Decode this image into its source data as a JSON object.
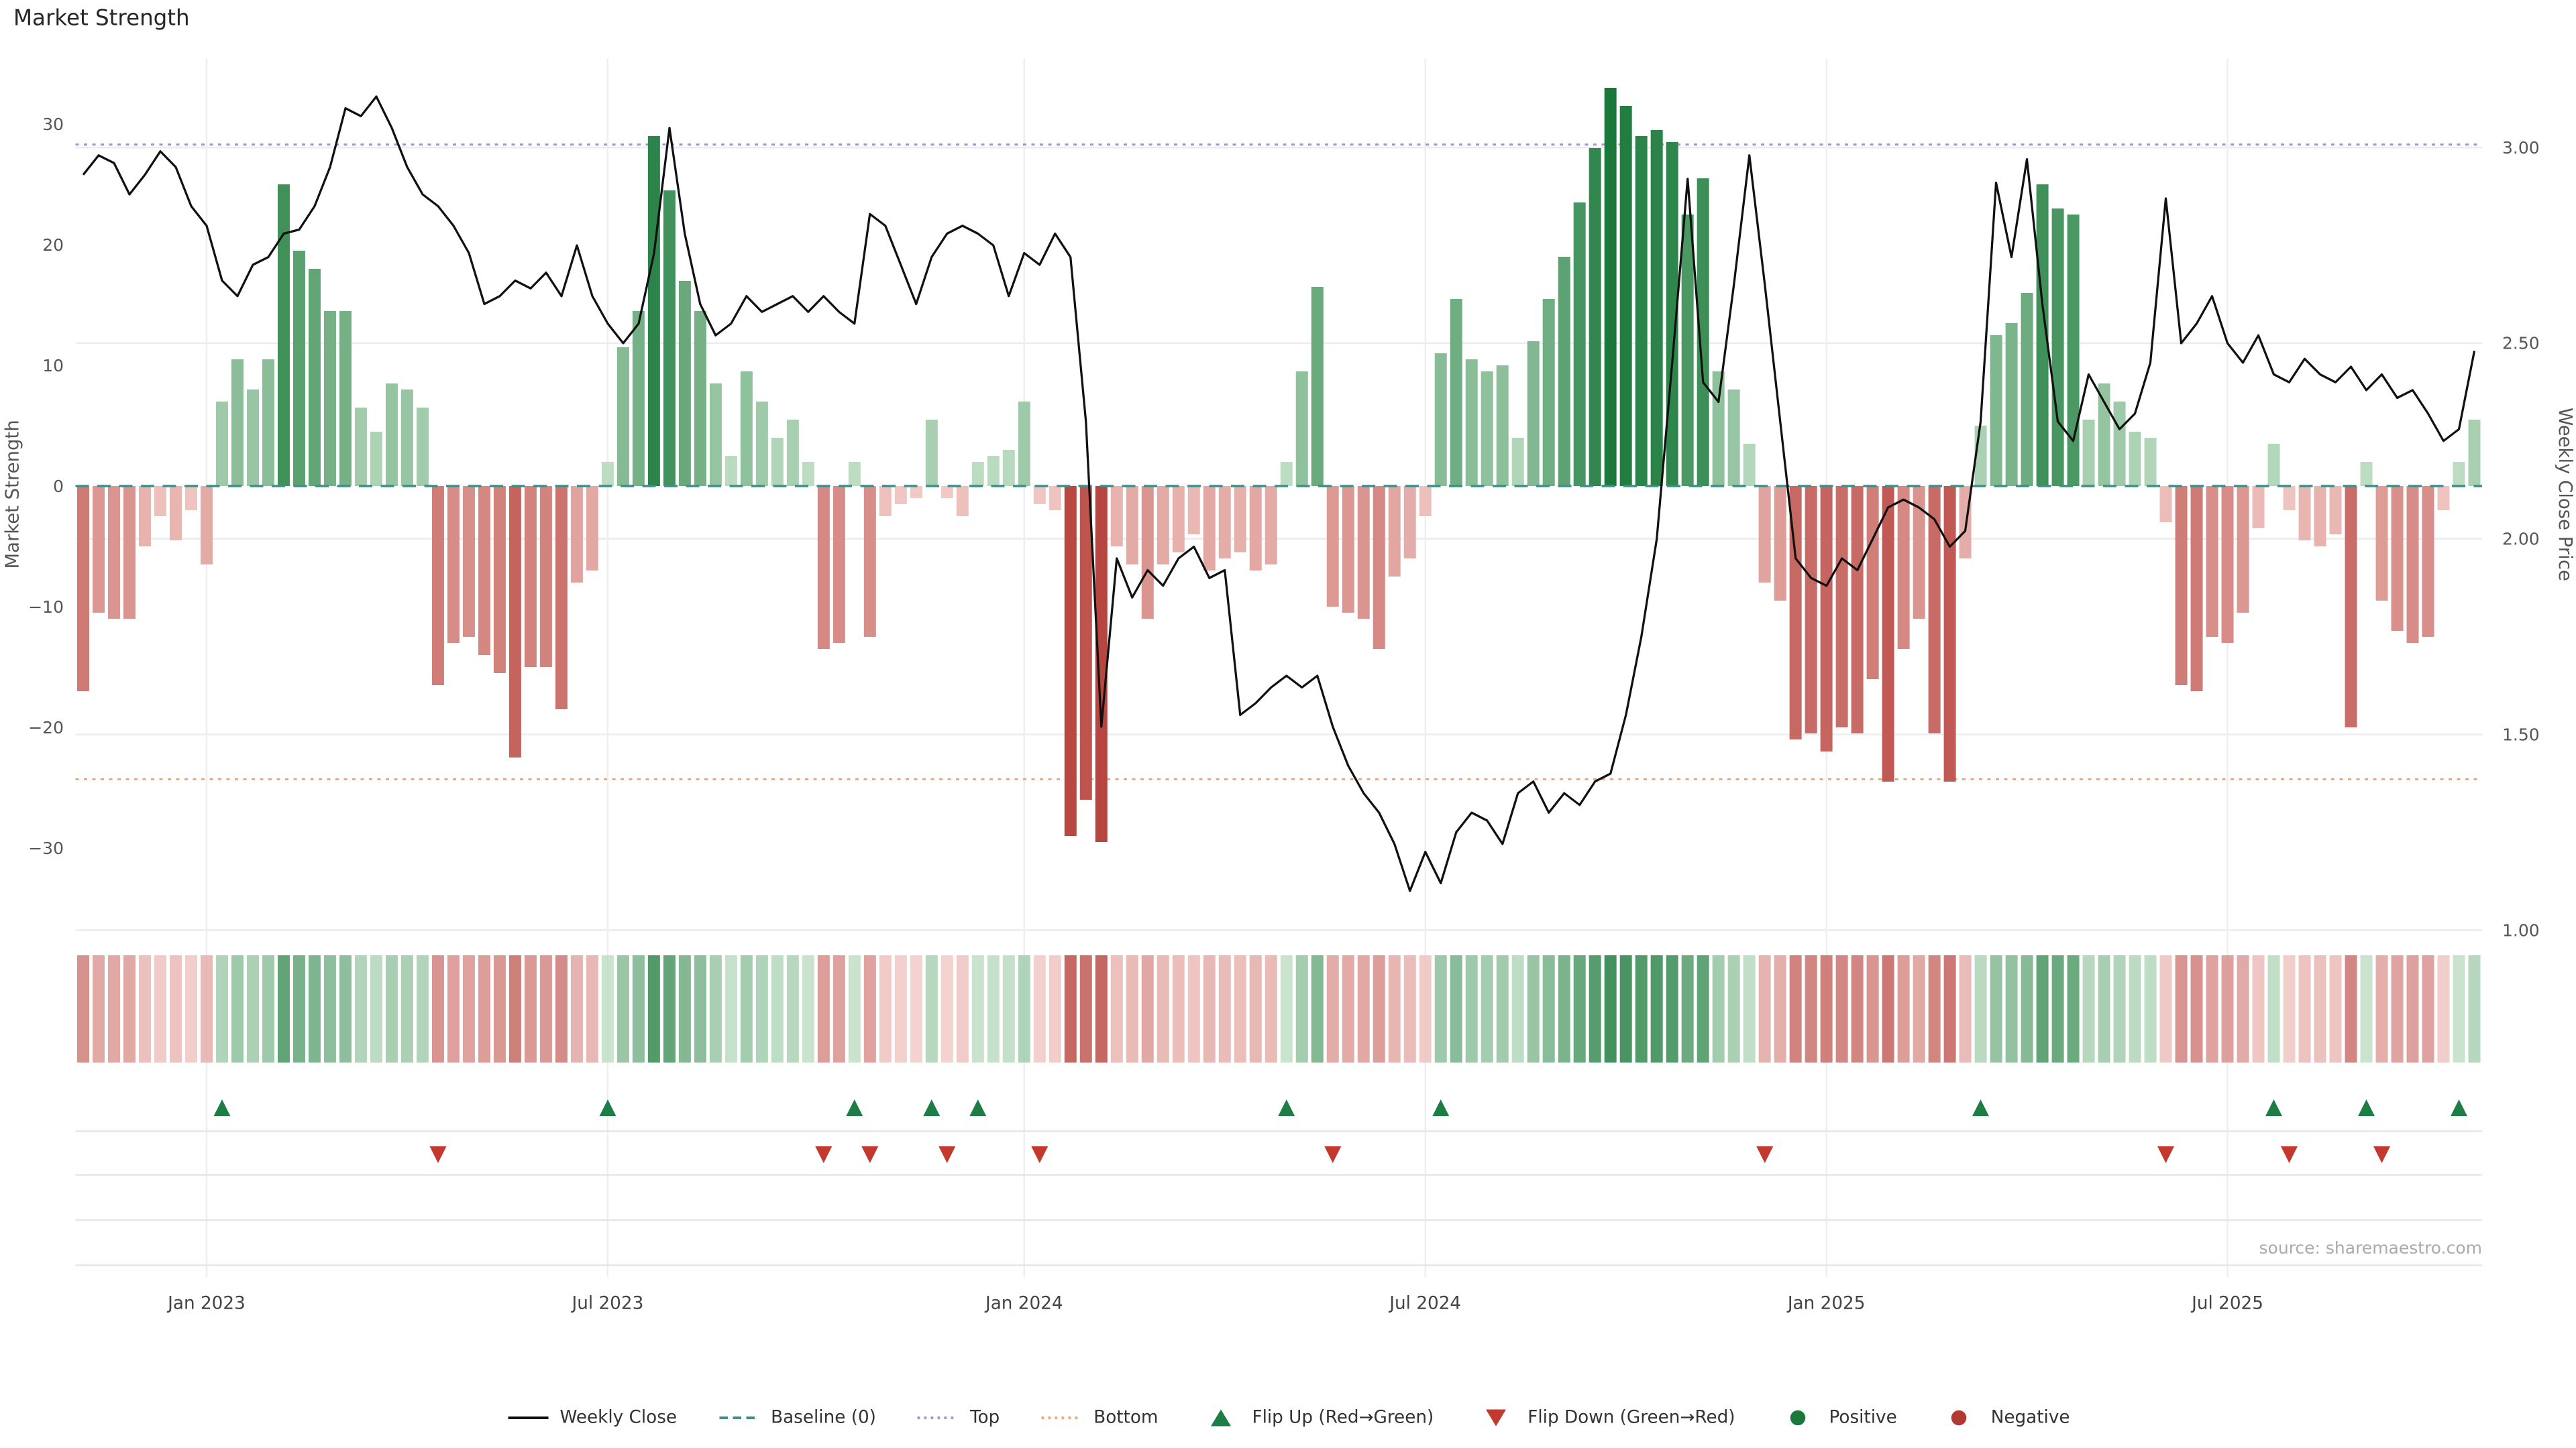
{
  "title": "Market Strength",
  "source": "source: sharemaestro.com",
  "axes": {
    "left_label": "Market Strength",
    "right_label": "Weekly Close Price"
  },
  "colors": {
    "baseline": "#3d8f8a",
    "top": "#a491cd",
    "bottom": "#f2a672",
    "flip_up": "#1e7d46",
    "flip_down": "#c4392e",
    "line": "#111111",
    "positive_dark": "#1a793a",
    "negative_dark": "#b23832",
    "positive_light": "#cee7d1",
    "negative_light": "#f5d1cd"
  },
  "legend": [
    {
      "key": "weekly-close",
      "label": "Weekly Close",
      "marker": "line",
      "color": "#111111"
    },
    {
      "key": "baseline",
      "label": "Baseline (0)",
      "marker": "dashed",
      "color": "#3d8f8a"
    },
    {
      "key": "top",
      "label": "Top",
      "marker": "dotted",
      "color": "#a491cd"
    },
    {
      "key": "bottom",
      "label": "Bottom",
      "marker": "dotted",
      "color": "#f2a672"
    },
    {
      "key": "flip-up",
      "label": "Flip Up (Red→Green)",
      "marker": "triangle-up",
      "color": "#1e7d46"
    },
    {
      "key": "flip-down",
      "label": "Flip Down (Green→Red)",
      "marker": "triangle-down",
      "color": "#c4392e"
    },
    {
      "key": "positive",
      "label": "Positive",
      "marker": "circle",
      "color": "#1a793a"
    },
    {
      "key": "negative",
      "label": "Negative",
      "marker": "circle",
      "color": "#b23832"
    }
  ],
  "chart_data": {
    "type": "combo",
    "x_unit": "week",
    "weeks": 156,
    "bar_series": {
      "name": "Market Strength",
      "axis": "left",
      "values": [
        -17,
        -10.5,
        -11,
        -11,
        -5,
        -2.5,
        -4.5,
        -2,
        -6.5,
        7,
        10.5,
        8,
        10.5,
        25,
        19.5,
        18,
        14.5,
        14.5,
        6.5,
        4.5,
        8.5,
        8,
        6.5,
        -16.5,
        -13,
        -12.5,
        -14,
        -15.5,
        -22.5,
        -15,
        -15,
        -18.5,
        -8,
        -7,
        2,
        11.5,
        14.5,
        29,
        24.5,
        17,
        14.5,
        8.5,
        2.5,
        9.5,
        7,
        4,
        5.5,
        2,
        -13.5,
        -13,
        2,
        -12.5,
        -2.5,
        -1.5,
        -1,
        5.5,
        -1,
        -2.5,
        2,
        2.5,
        3,
        7,
        -1.5,
        -2,
        -29,
        -26,
        -29.5,
        -5,
        -6.5,
        -11,
        -6.5,
        -5.5,
        -4,
        -7,
        -6,
        -5.5,
        -7,
        -6.5,
        2,
        9.5,
        16.5,
        -10,
        -10.5,
        -11,
        -13.5,
        -7.5,
        -6,
        -2.5,
        11,
        15.5,
        10.5,
        9.5,
        10,
        4,
        12,
        15.5,
        19,
        23.5,
        28,
        33,
        31.5,
        29,
        29.5,
        28.5,
        22.5,
        25.5,
        9.5,
        8,
        3.5,
        -8,
        -9.5,
        -21,
        -20.5,
        -22,
        -20,
        -20.5,
        -16,
        -24.5,
        -13.5,
        -11,
        -20.5,
        -24.5,
        -6,
        5,
        12.5,
        13.5,
        16,
        25,
        23,
        22.5,
        5.5,
        8.5,
        7,
        4.5,
        4,
        -3,
        -16.5,
        -17,
        -12.5,
        -13,
        -10.5,
        -3.5,
        3.5,
        -2,
        -4.5,
        -5,
        -4,
        -20,
        2,
        -9.5,
        -12,
        -13,
        -12.5,
        -2,
        2,
        5.5
      ]
    },
    "line_series": {
      "name": "Weekly Close",
      "axis": "right",
      "values": [
        2.93,
        2.98,
        2.96,
        2.88,
        2.93,
        2.99,
        2.95,
        2.85,
        2.8,
        2.66,
        2.62,
        2.7,
        2.72,
        2.78,
        2.79,
        2.85,
        2.95,
        3.1,
        3.08,
        3.13,
        3.05,
        2.95,
        2.88,
        2.85,
        2.8,
        2.73,
        2.6,
        2.62,
        2.66,
        2.64,
        2.68,
        2.62,
        2.75,
        2.62,
        2.55,
        2.5,
        2.55,
        2.73,
        3.05,
        2.78,
        2.6,
        2.52,
        2.55,
        2.62,
        2.58,
        2.6,
        2.62,
        2.58,
        2.62,
        2.58,
        2.55,
        2.83,
        2.8,
        2.7,
        2.6,
        2.72,
        2.78,
        2.8,
        2.78,
        2.75,
        2.62,
        2.73,
        2.7,
        2.78,
        2.72,
        2.3,
        1.52,
        1.95,
        1.85,
        1.92,
        1.88,
        1.95,
        1.98,
        1.9,
        1.92,
        1.55,
        1.58,
        1.62,
        1.65,
        1.62,
        1.65,
        1.52,
        1.42,
        1.35,
        1.3,
        1.22,
        1.1,
        1.2,
        1.12,
        1.25,
        1.3,
        1.28,
        1.22,
        1.35,
        1.38,
        1.3,
        1.35,
        1.32,
        1.38,
        1.4,
        1.55,
        1.75,
        2.0,
        2.45,
        2.92,
        2.4,
        2.35,
        2.65,
        2.98,
        2.65,
        2.3,
        1.95,
        1.9,
        1.88,
        1.95,
        1.92,
        2.0,
        2.08,
        2.1,
        2.08,
        2.05,
        1.98,
        2.02,
        2.3,
        2.91,
        2.72,
        2.97,
        2.6,
        2.3,
        2.25,
        2.42,
        2.35,
        2.28,
        2.32,
        2.45,
        2.87,
        2.5,
        2.55,
        2.62,
        2.5,
        2.45,
        2.52,
        2.42,
        2.4,
        2.46,
        2.42,
        2.4,
        2.44,
        2.38,
        2.42,
        2.36,
        2.38,
        2.32,
        2.25,
        2.28,
        2.48
      ]
    },
    "reference_lines": {
      "baseline": 0,
      "top": 28.3,
      "bottom": -24.3
    },
    "flip_up_weeks": [
      9,
      34,
      50,
      55,
      58,
      78,
      88,
      123,
      142,
      148,
      154
    ],
    "flip_down_weeks": [
      23,
      48,
      51,
      56,
      62,
      81,
      109,
      135,
      143,
      149
    ],
    "left_ylim": [
      -36.8,
      35.4
    ],
    "right_ylim": [
      0.97,
      3.23
    ],
    "left_yticks": [
      "30",
      "20",
      "10",
      "0",
      "−10",
      "−20",
      "−30"
    ],
    "right_yticks": [
      "3.00",
      "2.50",
      "2.00",
      "1.50",
      "1.00"
    ],
    "x_ticks": [
      {
        "week": 8,
        "label": "Jan 2023"
      },
      {
        "week": 34,
        "label": "Jul 2023"
      },
      {
        "week": 61,
        "label": "Jan 2024"
      },
      {
        "week": 87,
        "label": "Jul 2024"
      },
      {
        "week": 113,
        "label": "Jan 2025"
      },
      {
        "week": 139,
        "label": "Jul 2025"
      }
    ],
    "legend_position": "bottom-center",
    "grid": true
  }
}
